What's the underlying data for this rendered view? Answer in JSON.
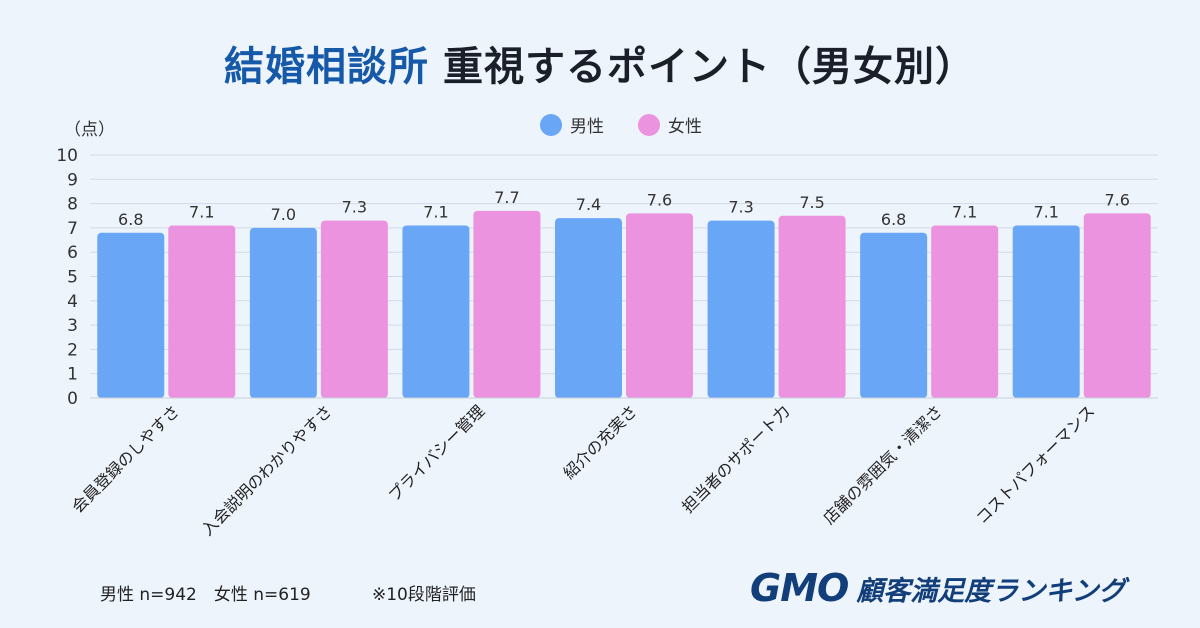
{
  "header": {
    "title_accent": "結婚相談所",
    "title_rest": "重視するポイント（男女別）"
  },
  "unit_label": "（点）",
  "legend": [
    {
      "label": "男性",
      "color": "#6aa6f6"
    },
    {
      "label": "女性",
      "color": "#ec93e0"
    }
  ],
  "footer": {
    "sample_note": "男性 n=942　女性 n=619",
    "scale_note": "※10段階評価",
    "brand_logo": "GMO",
    "brand_text": "顧客満足度ランキング"
  },
  "chart_data": {
    "type": "bar",
    "title": "結婚相談所 重視するポイント（男女別）",
    "ylabel": "（点）",
    "xlabel": "",
    "ylim": [
      0,
      10
    ],
    "yticks": [
      0,
      1,
      2,
      3,
      4,
      5,
      6,
      7,
      8,
      9,
      10
    ],
    "grid": true,
    "legend_position": "top-center",
    "categories": [
      "会員登録のしやすさ",
      "入会説明のわかりやすさ",
      "プライバシー管理",
      "紹介の充実さ",
      "担当者のサポート力",
      "店舗の雰囲気・清潔さ",
      "コストパフォーマンス"
    ],
    "series": [
      {
        "name": "男性",
        "color": "#6aa6f6",
        "values": [
          6.8,
          7.0,
          7.1,
          7.4,
          7.3,
          6.8,
          7.1
        ]
      },
      {
        "name": "女性",
        "color": "#ec93e0",
        "values": [
          7.1,
          7.3,
          7.7,
          7.6,
          7.5,
          7.1,
          7.6
        ]
      }
    ]
  }
}
